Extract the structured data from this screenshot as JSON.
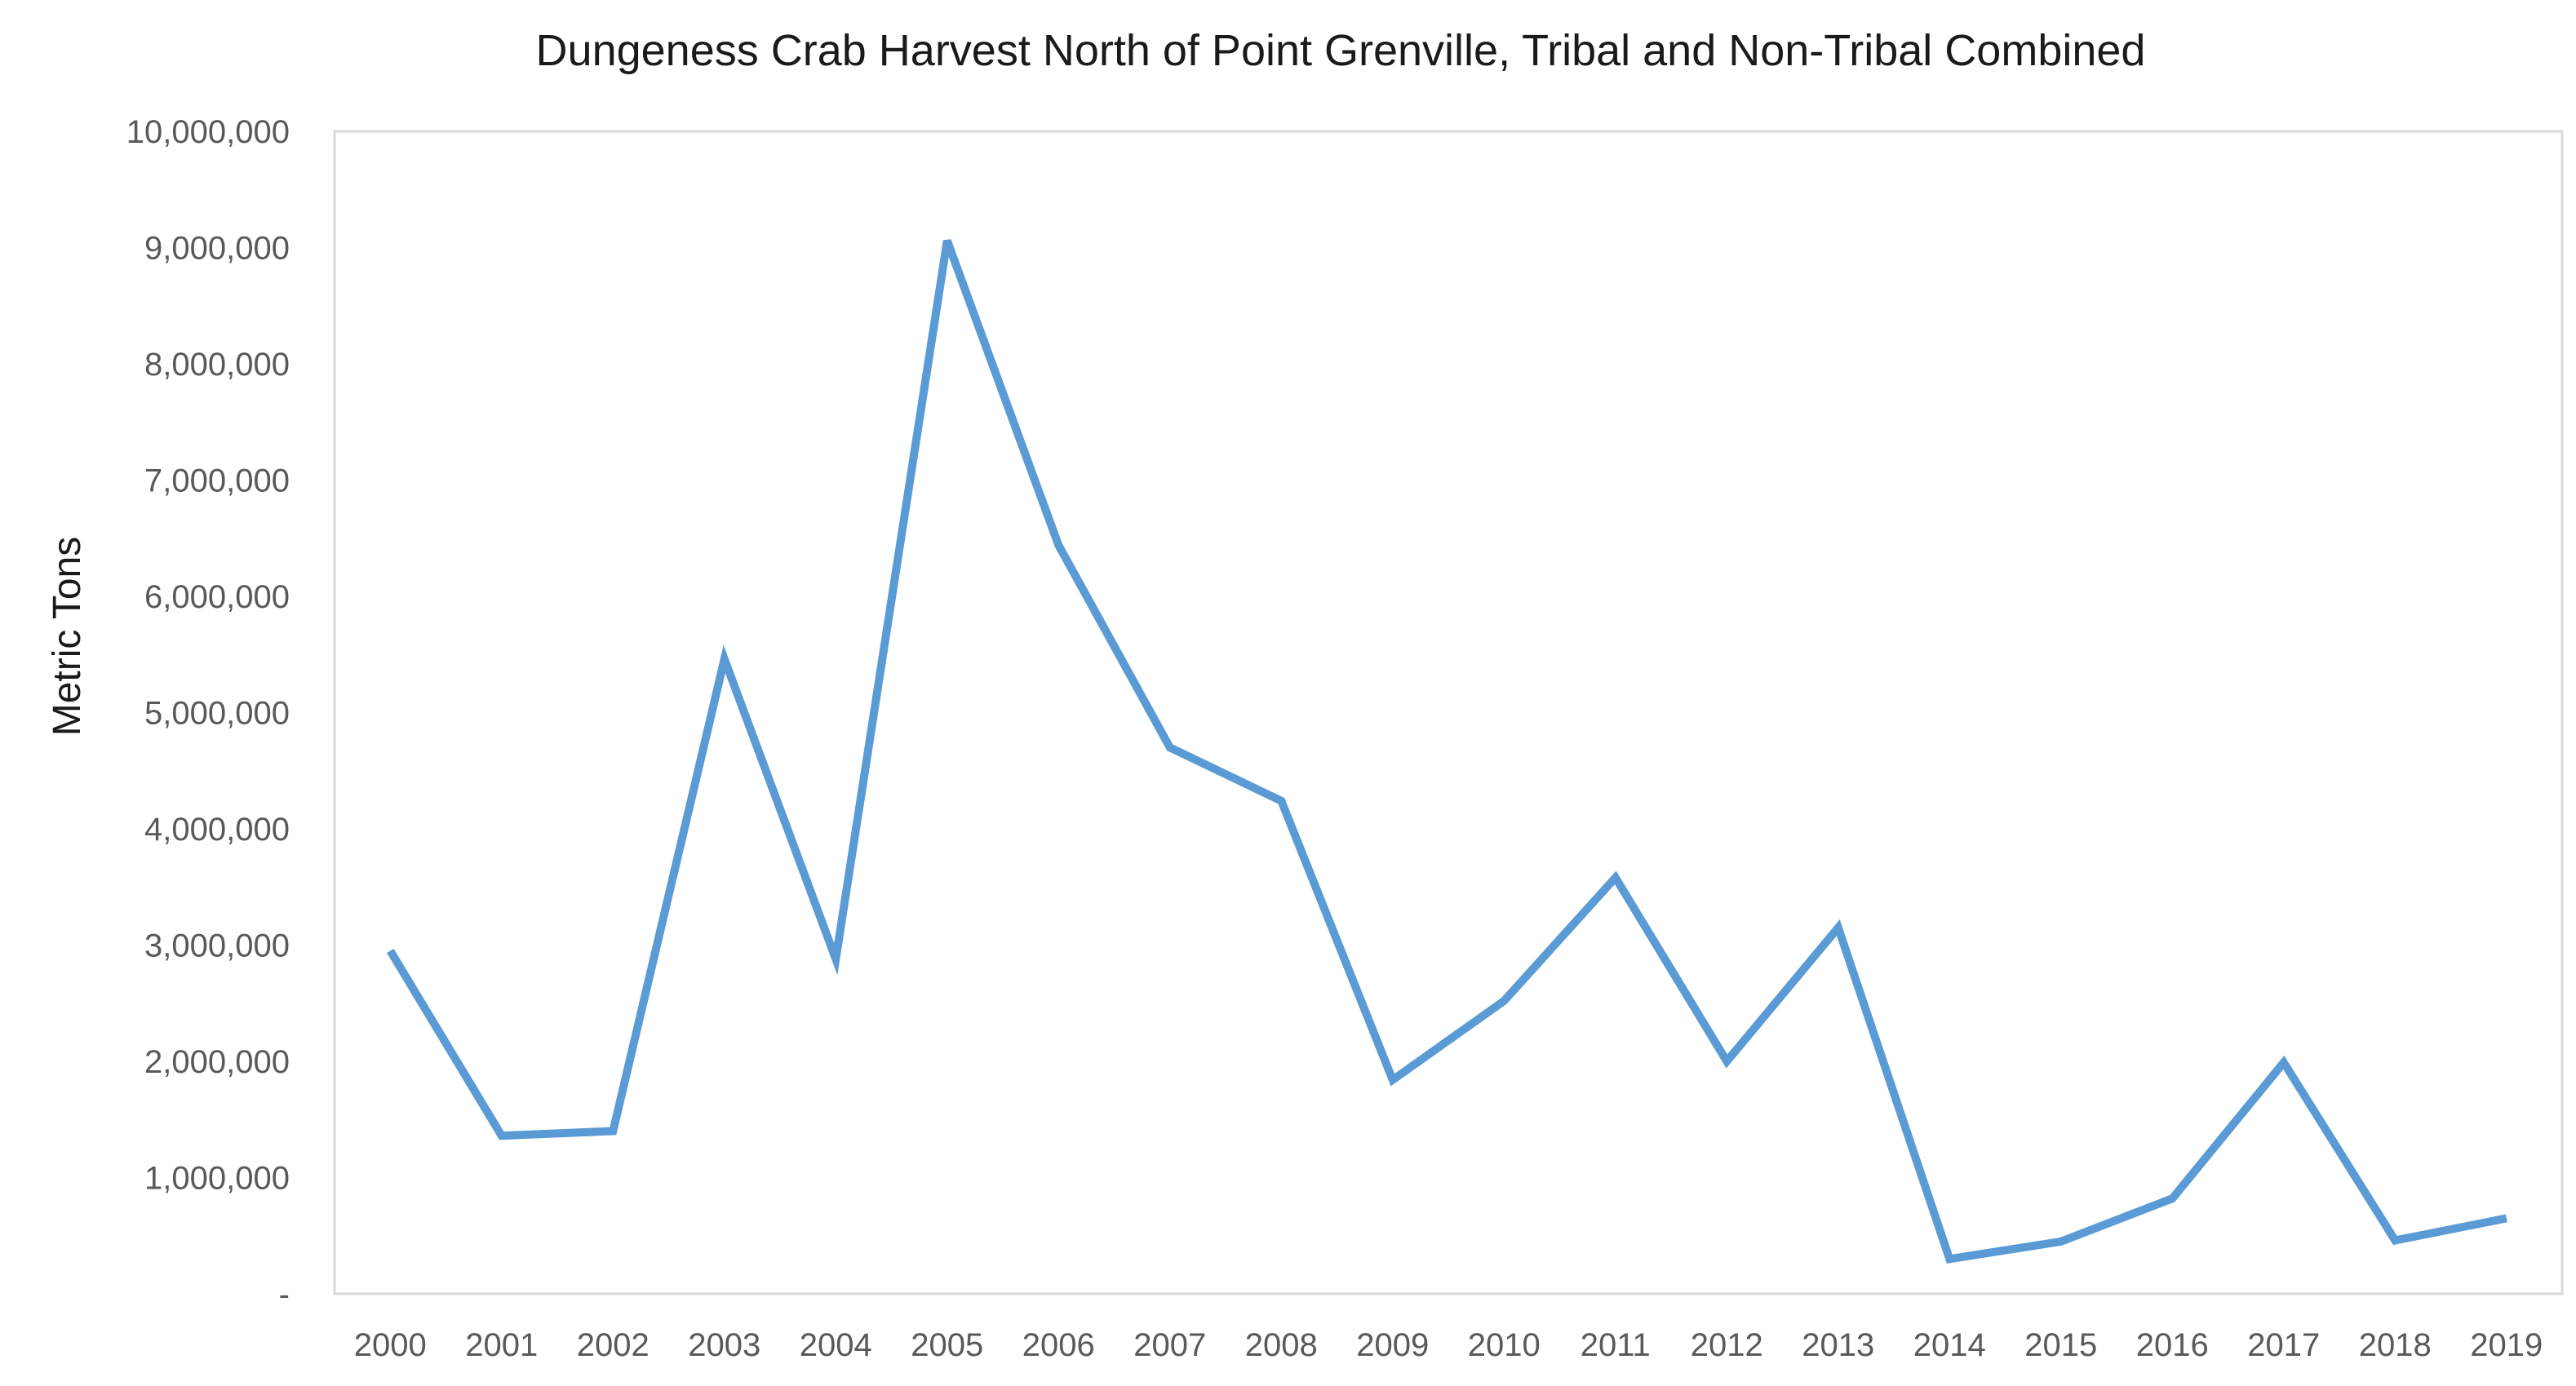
{
  "chart_data": {
    "type": "line",
    "title": "Dungeness Crab Harvest North of Point Grenville, Tribal and Non-Tribal Combined",
    "xlabel": "",
    "ylabel": "Metric Tons",
    "categories": [
      "2000",
      "2001",
      "2002",
      "2003",
      "2004",
      "2005",
      "2006",
      "2007",
      "2008",
      "2009",
      "2010",
      "2011",
      "2012",
      "2013",
      "2014",
      "2015",
      "2016",
      "2017",
      "2018",
      "2019"
    ],
    "series": [
      {
        "values": [
          2950000,
          1360000,
          1400000,
          5460000,
          2880000,
          9060000,
          6440000,
          4700000,
          4240000,
          1840000,
          2520000,
          3580000,
          2000000,
          3150000,
          300000,
          450000,
          820000,
          1990000,
          460000,
          650000
        ],
        "color": "#5B9BD5"
      }
    ],
    "ylim": [
      0,
      10000000
    ],
    "y_ticks": [
      0,
      1000000,
      2000000,
      3000000,
      4000000,
      5000000,
      6000000,
      7000000,
      8000000,
      9000000,
      10000000
    ],
    "y_tick_labels": [
      "-",
      "1,000,000",
      "2,000,000",
      "3,000,000",
      "4,000,000",
      "5,000,000",
      "6,000,000",
      "7,000,000",
      "8,000,000",
      "9,000,000",
      "10,000,000"
    ],
    "grid": false,
    "legend": "none"
  }
}
